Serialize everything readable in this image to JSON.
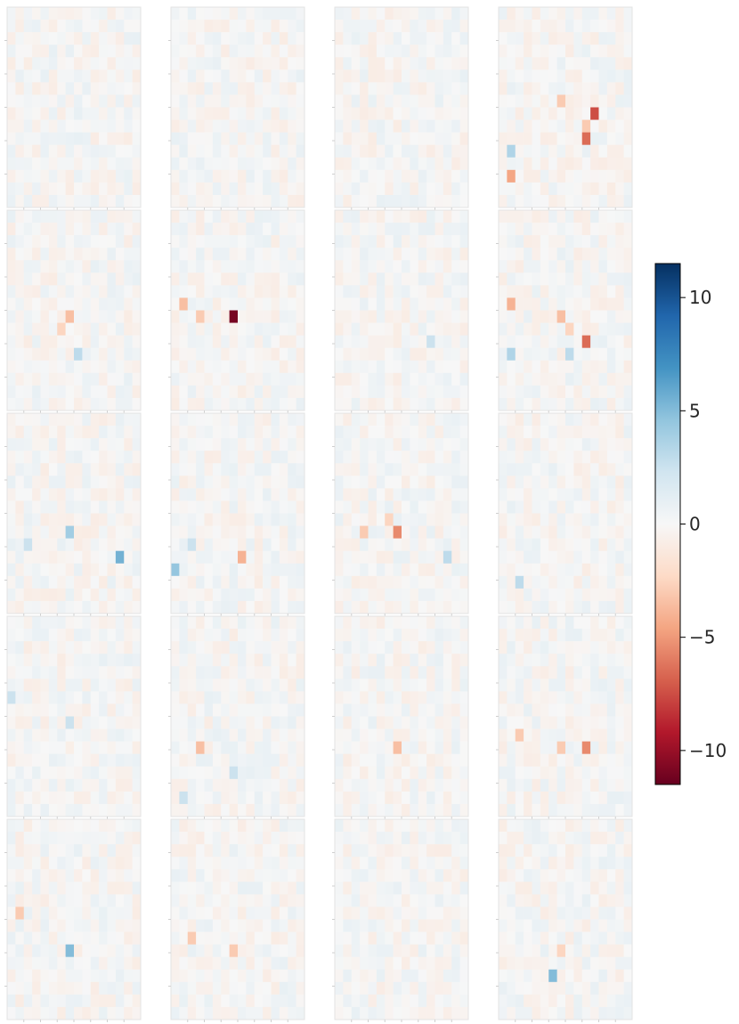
{
  "chart_data": {
    "type": "heatmap",
    "layout": {
      "rows": 5,
      "cols": 4
    },
    "grid_size": 16,
    "title": "",
    "xlabel": "",
    "ylabel": "",
    "colormap": "RdBu",
    "colormap_stops": [
      "#67001f",
      "#b2182b",
      "#d6604d",
      "#f4a582",
      "#fddbc7",
      "#f7f7f7",
      "#d1e5f0",
      "#92c5de",
      "#4393c3",
      "#2166ac",
      "#053061"
    ],
    "vlim": [
      -11.5,
      11.5
    ],
    "colorbar": {
      "ticks": [
        10,
        5,
        0,
        -5,
        -10
      ],
      "tick_labels": [
        "10",
        "5",
        "0",
        "−5",
        "−10"
      ],
      "placement": "right"
    },
    "noise_amplitude": 0.9,
    "panels": [
      {
        "row": 0,
        "col": 0,
        "highlights": []
      },
      {
        "row": 0,
        "col": 1,
        "highlights": []
      },
      {
        "row": 0,
        "col": 2,
        "highlights": []
      },
      {
        "row": 0,
        "col": 3,
        "highlights": [
          {
            "r": 13,
            "c": 1,
            "v": -4.5
          },
          {
            "r": 7,
            "c": 7,
            "v": -3.0
          },
          {
            "r": 8,
            "c": 11,
            "v": -7.5
          },
          {
            "r": 9,
            "c": 10,
            "v": -3.0
          },
          {
            "r": 10,
            "c": 10,
            "v": -6.5
          },
          {
            "r": 11,
            "c": 1,
            "v": 3.5
          }
        ]
      },
      {
        "row": 1,
        "col": 0,
        "highlights": [
          {
            "r": 8,
            "c": 7,
            "v": -3.5
          },
          {
            "r": 9,
            "c": 6,
            "v": -2.5
          },
          {
            "r": 11,
            "c": 8,
            "v": 3.0
          }
        ]
      },
      {
        "row": 1,
        "col": 1,
        "highlights": [
          {
            "r": 7,
            "c": 1,
            "v": -3.5
          },
          {
            "r": 8,
            "c": 3,
            "v": -3.0
          },
          {
            "r": 8,
            "c": 7,
            "v": -11.0
          }
        ]
      },
      {
        "row": 1,
        "col": 2,
        "highlights": [
          {
            "r": 10,
            "c": 11,
            "v": 2.5
          }
        ]
      },
      {
        "row": 1,
        "col": 3,
        "highlights": [
          {
            "r": 7,
            "c": 1,
            "v": -4.0
          },
          {
            "r": 8,
            "c": 7,
            "v": -3.5
          },
          {
            "r": 9,
            "c": 8,
            "v": -2.5
          },
          {
            "r": 10,
            "c": 10,
            "v": -6.5
          },
          {
            "r": 11,
            "c": 1,
            "v": 3.5
          },
          {
            "r": 11,
            "c": 8,
            "v": 3.0
          }
        ]
      },
      {
        "row": 2,
        "col": 0,
        "highlights": [
          {
            "r": 9,
            "c": 7,
            "v": 4.0
          },
          {
            "r": 10,
            "c": 2,
            "v": 2.5
          },
          {
            "r": 11,
            "c": 13,
            "v": 5.5
          }
        ]
      },
      {
        "row": 2,
        "col": 1,
        "highlights": [
          {
            "r": 10,
            "c": 2,
            "v": 2.5
          },
          {
            "r": 11,
            "c": 8,
            "v": -4.0
          },
          {
            "r": 12,
            "c": 0,
            "v": 4.5
          }
        ]
      },
      {
        "row": 2,
        "col": 2,
        "highlights": [
          {
            "r": 8,
            "c": 6,
            "v": -2.5
          },
          {
            "r": 9,
            "c": 3,
            "v": -3.0
          },
          {
            "r": 9,
            "c": 7,
            "v": -5.5
          },
          {
            "r": 11,
            "c": 13,
            "v": 3.0
          }
        ]
      },
      {
        "row": 2,
        "col": 3,
        "highlights": [
          {
            "r": 13,
            "c": 2,
            "v": 3.0
          }
        ]
      },
      {
        "row": 3,
        "col": 0,
        "highlights": [
          {
            "r": 6,
            "c": 0,
            "v": 2.5
          },
          {
            "r": 8,
            "c": 7,
            "v": 2.5
          }
        ]
      },
      {
        "row": 3,
        "col": 1,
        "highlights": [
          {
            "r": 10,
            "c": 3,
            "v": -3.5
          },
          {
            "r": 12,
            "c": 7,
            "v": 2.5
          },
          {
            "r": 14,
            "c": 1,
            "v": 2.5
          }
        ]
      },
      {
        "row": 3,
        "col": 2,
        "highlights": [
          {
            "r": 10,
            "c": 7,
            "v": -3.5
          }
        ]
      },
      {
        "row": 3,
        "col": 3,
        "highlights": [
          {
            "r": 9,
            "c": 2,
            "v": -3.0
          },
          {
            "r": 10,
            "c": 7,
            "v": -3.0
          },
          {
            "r": 10,
            "c": 10,
            "v": -5.5
          }
        ]
      },
      {
        "row": 4,
        "col": 0,
        "highlights": [
          {
            "r": 7,
            "c": 1,
            "v": -3.0
          },
          {
            "r": 10,
            "c": 7,
            "v": 5.0
          }
        ]
      },
      {
        "row": 4,
        "col": 1,
        "highlights": [
          {
            "r": 9,
            "c": 2,
            "v": -3.0
          },
          {
            "r": 10,
            "c": 7,
            "v": -3.0
          }
        ]
      },
      {
        "row": 4,
        "col": 2,
        "highlights": []
      },
      {
        "row": 4,
        "col": 3,
        "highlights": [
          {
            "r": 10,
            "c": 7,
            "v": -2.5
          },
          {
            "r": 12,
            "c": 6,
            "v": 5.0
          }
        ]
      }
    ]
  }
}
